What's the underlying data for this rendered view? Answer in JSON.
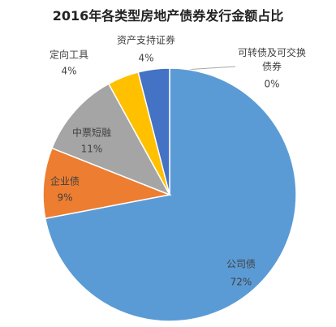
{
  "chart_data": {
    "type": "pie",
    "title": "2016年各类型房地产债券发行金额占比",
    "categories": [
      "可转债及可交换债券",
      "公司债",
      "企业债",
      "中票短融",
      "定向工具",
      "资产支持证券"
    ],
    "values": [
      0,
      72,
      9,
      11,
      4,
      4
    ],
    "value_labels": [
      "0%",
      "72%",
      "9%",
      "11%",
      "4%",
      "4%"
    ],
    "colors": [
      "#70ad47",
      "#5b9bd5",
      "#ed7d31",
      "#a5a5a5",
      "#ffc000",
      "#4472c4"
    ]
  }
}
